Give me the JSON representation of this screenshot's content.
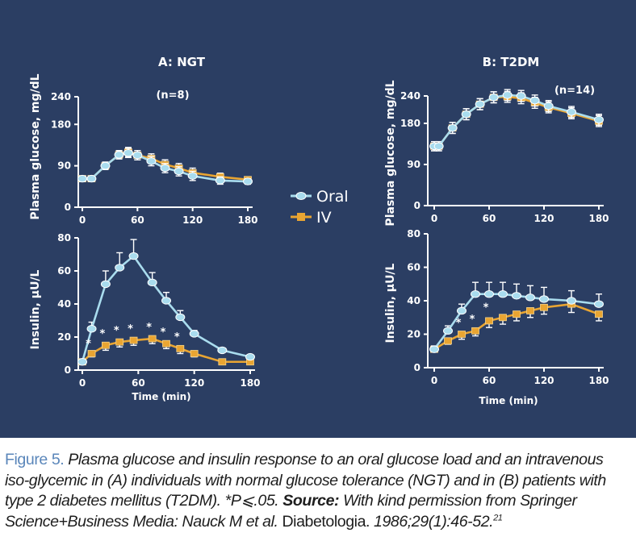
{
  "chart_data": [
    {
      "type": "line",
      "id": "A-glucose",
      "title": "A: NGT",
      "annotation": "(n=8)",
      "ylabel": "Plasma glucose, mg/dL",
      "xlabel": "",
      "xlim": [
        0,
        180
      ],
      "ylim": [
        0,
        240
      ],
      "xticks": [
        0,
        60,
        120,
        180
      ],
      "yticks": [
        0,
        90,
        180,
        240
      ],
      "series": [
        {
          "name": "Oral",
          "x": [
            0,
            10,
            25,
            40,
            50,
            60,
            75,
            90,
            105,
            120,
            150,
            180
          ],
          "y": [
            62,
            62,
            90,
            114,
            118,
            113,
            100,
            85,
            78,
            68,
            58,
            56
          ],
          "err": [
            6,
            6,
            8,
            9,
            10,
            10,
            10,
            10,
            10,
            10,
            8,
            6
          ]
        },
        {
          "name": "IV",
          "x": [
            0,
            10,
            25,
            40,
            50,
            60,
            75,
            90,
            105,
            120,
            150,
            180
          ],
          "y": [
            62,
            62,
            90,
            114,
            120,
            113,
            106,
            93,
            85,
            75,
            66,
            60
          ],
          "err": [
            6,
            6,
            8,
            9,
            10,
            10,
            10,
            10,
            10,
            10,
            8,
            6
          ]
        }
      ]
    },
    {
      "type": "line",
      "id": "A-insulin",
      "ylabel": "Insulin, μU/L",
      "xlabel": "Time (min)",
      "xlim": [
        0,
        180
      ],
      "ylim": [
        0,
        80
      ],
      "xticks": [
        0,
        60,
        120,
        180
      ],
      "yticks": [
        0,
        20,
        40,
        60,
        80
      ],
      "significance": "*",
      "significant_x": [
        10,
        25,
        40,
        55,
        75,
        90,
        105
      ],
      "series": [
        {
          "name": "Oral",
          "x": [
            0,
            10,
            25,
            40,
            55,
            75,
            90,
            105,
            120,
            150,
            180
          ],
          "y": [
            5,
            25,
            52,
            62,
            69,
            53,
            42,
            32,
            22,
            12,
            8
          ],
          "err": [
            1,
            4,
            8,
            9,
            10,
            6,
            5,
            4,
            2,
            1,
            1
          ]
        },
        {
          "name": "IV",
          "x": [
            0,
            10,
            25,
            40,
            55,
            75,
            90,
            105,
            120,
            150,
            180
          ],
          "y": [
            5,
            10,
            15,
            17,
            18,
            19,
            16,
            13,
            10,
            5,
            5
          ],
          "err": [
            1,
            2,
            3,
            3,
            3,
            3,
            3,
            3,
            2,
            1,
            1
          ]
        }
      ]
    },
    {
      "type": "line",
      "id": "B-glucose",
      "title": "B: T2DM",
      "annotation": "(n=14)",
      "ylabel": "Plasma glucose, mg/dL",
      "xlabel": "",
      "xlim": [
        0,
        180
      ],
      "ylim": [
        0,
        240
      ],
      "xticks": [
        0,
        60,
        120,
        180
      ],
      "yticks": [
        0,
        90,
        180,
        240
      ],
      "series": [
        {
          "name": "Oral",
          "x": [
            0,
            5,
            20,
            35,
            50,
            65,
            80,
            95,
            110,
            125,
            150,
            180
          ],
          "y": [
            130,
            130,
            170,
            200,
            222,
            237,
            242,
            240,
            230,
            218,
            205,
            188
          ],
          "err": [
            10,
            10,
            12,
            12,
            12,
            12,
            12,
            12,
            12,
            12,
            12,
            12
          ]
        },
        {
          "name": "IV",
          "x": [
            0,
            5,
            20,
            35,
            50,
            65,
            80,
            95,
            110,
            125,
            150,
            180
          ],
          "y": [
            130,
            130,
            170,
            200,
            222,
            237,
            238,
            235,
            225,
            215,
            202,
            185
          ],
          "err": [
            10,
            10,
            12,
            12,
            12,
            12,
            12,
            12,
            12,
            12,
            12,
            12
          ]
        }
      ]
    },
    {
      "type": "line",
      "id": "B-insulin",
      "ylabel": "Insulin, μU/L",
      "xlabel": "Time (min)",
      "xlim": [
        0,
        180
      ],
      "ylim": [
        0,
        80
      ],
      "xticks": [
        0,
        60,
        120,
        180
      ],
      "yticks": [
        0,
        20,
        40,
        60,
        80
      ],
      "significance": "*",
      "significant_x": [
        30,
        45,
        60
      ],
      "series": [
        {
          "name": "Oral",
          "x": [
            0,
            15,
            30,
            45,
            60,
            75,
            90,
            105,
            120,
            150,
            180
          ],
          "y": [
            11,
            22,
            34,
            44,
            44,
            44,
            43,
            42,
            41,
            40,
            38
          ],
          "err": [
            2,
            3,
            4,
            7,
            7,
            7,
            7,
            7,
            7,
            6,
            6
          ]
        },
        {
          "name": "IV",
          "x": [
            0,
            15,
            30,
            45,
            60,
            75,
            90,
            105,
            120,
            150,
            180
          ],
          "y": [
            11,
            16,
            20,
            22,
            28,
            30,
            32,
            34,
            36,
            38,
            32
          ],
          "err": [
            1,
            2,
            3,
            3,
            4,
            4,
            4,
            4,
            4,
            5,
            4
          ]
        }
      ]
    }
  ],
  "legend": {
    "placement": "center",
    "items": [
      {
        "name": "Oral"
      },
      {
        "name": "IV"
      }
    ]
  },
  "colors": {
    "panel_bg": "#2b3e63",
    "oral": "#a9dcee",
    "iv": "#e9a532",
    "axis": "#ffffff",
    "caption_label": "#5a86ba"
  },
  "caption": {
    "label": "Figure 5.",
    "text1": "Plasma glucose and insulin response to an oral glucose load and an intravenous iso-glycemic in (A) individuals with normal glucose tolerance (NGT) and in (B) patients with type 2 diabetes mellitus (T2DM).",
    "sig": "*P⩽.05.",
    "source_label": "Source:",
    "source_text": "With kind permission from Springer Science+Business Media: Nauck M et al.",
    "journal": "Diabetologia.",
    "citation": "1986;29(1):46-52.",
    "ref": "21"
  }
}
